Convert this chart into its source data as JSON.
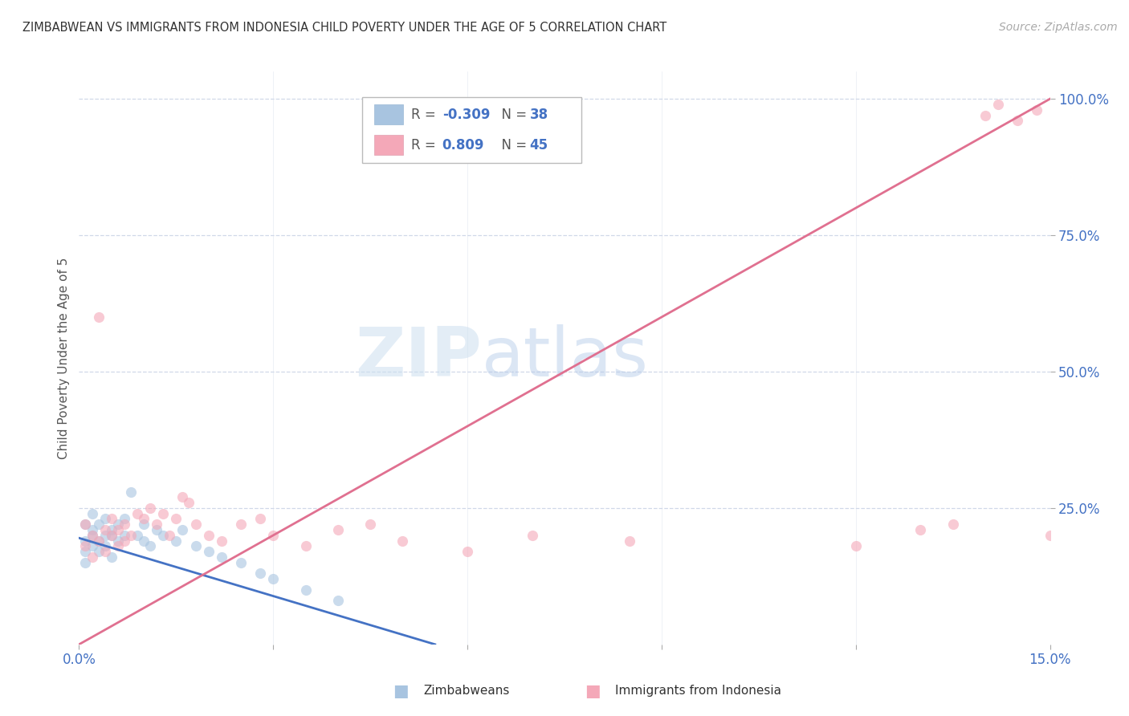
{
  "title": "ZIMBABWEAN VS IMMIGRANTS FROM INDONESIA CHILD POVERTY UNDER THE AGE OF 5 CORRELATION CHART",
  "source": "Source: ZipAtlas.com",
  "ylabel": "Child Poverty Under the Age of 5",
  "xlim": [
    0.0,
    0.15
  ],
  "ylim": [
    0.0,
    1.05
  ],
  "xtick_pos": [
    0.0,
    0.03,
    0.06,
    0.09,
    0.12,
    0.15
  ],
  "xticklabels": [
    "0.0%",
    "",
    "",
    "",
    "",
    "15.0%"
  ],
  "ytick_pos": [
    0.25,
    0.5,
    0.75,
    1.0
  ],
  "yticklabels": [
    "25.0%",
    "50.0%",
    "75.0%",
    "100.0%"
  ],
  "r_zimbabwe": -0.309,
  "n_zimbabwe": 38,
  "r_indonesia": 0.809,
  "n_indonesia": 45,
  "zimbabwe_color": "#a8c4e0",
  "indonesia_color": "#f4a8b8",
  "zimbabwe_line_color": "#4472c4",
  "indonesia_line_color": "#e07090",
  "legend_label_1": "Zimbabweans",
  "legend_label_2": "Immigrants from Indonesia",
  "watermark_zip": "ZIP",
  "watermark_atlas": "atlas",
  "background_color": "#ffffff",
  "scatter_alpha": 0.6,
  "scatter_size": 90,
  "grid_color": "#d0d8e8",
  "tick_color": "#4472c4",
  "title_color": "#333333",
  "source_color": "#aaaaaa",
  "ylabel_color": "#555555",
  "zimbabwe_line_x": [
    0.0,
    0.055
  ],
  "zimbabwe_line_y": [
    0.195,
    0.0
  ],
  "indonesia_line_x": [
    0.0,
    0.15
  ],
  "indonesia_line_y": [
    0.0,
    1.0
  ],
  "zimbabwe_scatter_x": [
    0.001,
    0.001,
    0.001,
    0.001,
    0.002,
    0.002,
    0.002,
    0.002,
    0.003,
    0.003,
    0.003,
    0.004,
    0.004,
    0.004,
    0.005,
    0.005,
    0.005,
    0.006,
    0.006,
    0.007,
    0.007,
    0.008,
    0.009,
    0.01,
    0.01,
    0.011,
    0.012,
    0.013,
    0.015,
    0.016,
    0.018,
    0.02,
    0.022,
    0.025,
    0.028,
    0.03,
    0.035,
    0.04
  ],
  "zimbabwe_scatter_y": [
    0.19,
    0.22,
    0.17,
    0.15,
    0.21,
    0.18,
    0.24,
    0.2,
    0.19,
    0.22,
    0.17,
    0.2,
    0.23,
    0.18,
    0.21,
    0.16,
    0.2,
    0.22,
    0.19,
    0.2,
    0.23,
    0.28,
    0.2,
    0.19,
    0.22,
    0.18,
    0.21,
    0.2,
    0.19,
    0.21,
    0.18,
    0.17,
    0.16,
    0.15,
    0.13,
    0.12,
    0.1,
    0.08
  ],
  "indonesia_scatter_x": [
    0.001,
    0.001,
    0.002,
    0.002,
    0.003,
    0.003,
    0.004,
    0.004,
    0.005,
    0.005,
    0.006,
    0.006,
    0.007,
    0.007,
    0.008,
    0.009,
    0.01,
    0.011,
    0.012,
    0.013,
    0.014,
    0.015,
    0.016,
    0.017,
    0.018,
    0.02,
    0.022,
    0.025,
    0.028,
    0.03,
    0.035,
    0.04,
    0.045,
    0.05,
    0.06,
    0.07,
    0.085,
    0.12,
    0.13,
    0.135,
    0.14,
    0.142,
    0.145,
    0.148,
    0.15
  ],
  "indonesia_scatter_y": [
    0.18,
    0.22,
    0.16,
    0.2,
    0.6,
    0.19,
    0.17,
    0.21,
    0.2,
    0.23,
    0.18,
    0.21,
    0.22,
    0.19,
    0.2,
    0.24,
    0.23,
    0.25,
    0.22,
    0.24,
    0.2,
    0.23,
    0.27,
    0.26,
    0.22,
    0.2,
    0.19,
    0.22,
    0.23,
    0.2,
    0.18,
    0.21,
    0.22,
    0.19,
    0.17,
    0.2,
    0.19,
    0.18,
    0.21,
    0.22,
    0.97,
    0.99,
    0.96,
    0.98,
    0.2
  ]
}
